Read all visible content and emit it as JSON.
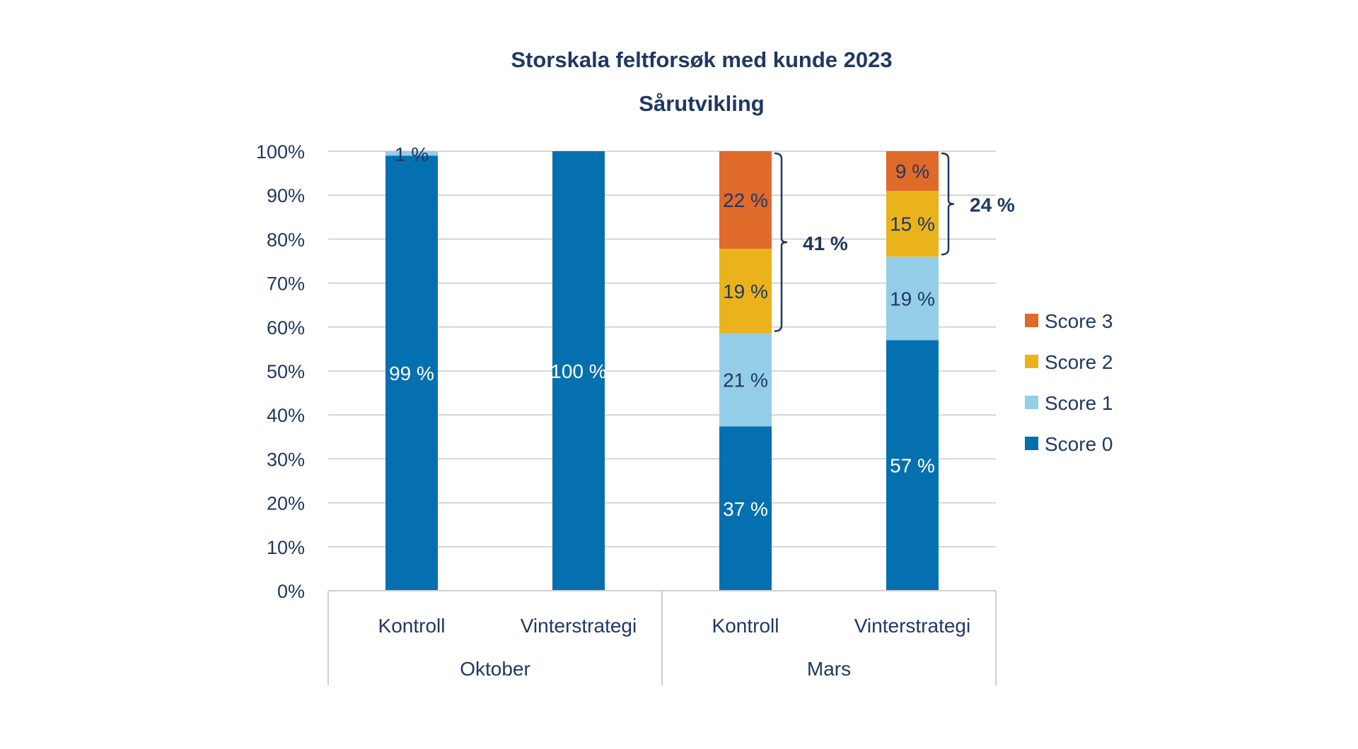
{
  "chart_data": {
    "type": "bar",
    "stacked": true,
    "percent_stacked": true,
    "title": "Storskala feltforsøk med kunde 2023",
    "subtitle": "Sårutvikling",
    "xlabel": "",
    "ylabel": "",
    "ylim": [
      0,
      100
    ],
    "yticks": [
      0,
      10,
      20,
      30,
      40,
      50,
      60,
      70,
      80,
      90,
      100
    ],
    "ytick_format": "{v}%",
    "grid": true,
    "legend_position": "right",
    "categories": [
      "Kontroll",
      "Vinterstrategi",
      "Kontroll",
      "Vinterstrategi"
    ],
    "groups": [
      {
        "label": "Oktober",
        "span": [
          0,
          1
        ]
      },
      {
        "label": "Mars",
        "span": [
          2,
          3
        ]
      }
    ],
    "series": [
      {
        "name": "Score 0",
        "color": "#0570AF",
        "label_color": "#FFFFFF",
        "values": [
          99,
          100,
          37,
          57
        ],
        "labels": [
          "99 %",
          "100 %",
          "37 %",
          "57 %"
        ]
      },
      {
        "name": "Score 1",
        "color": "#94CDE8",
        "label_color": "#1F3864",
        "values": [
          1,
          0,
          21,
          19
        ],
        "labels": [
          "1 %",
          "",
          "21 %",
          "19 %"
        ]
      },
      {
        "name": "Score 2",
        "color": "#EAB31C",
        "label_color": "#1F3864",
        "values": [
          0,
          0,
          19,
          15
        ],
        "labels": [
          "",
          "",
          "19 %",
          "15 %"
        ]
      },
      {
        "name": "Score 3",
        "color": "#E06A2A",
        "label_color": "#1F3864",
        "values": [
          0,
          0,
          22,
          9
        ],
        "labels": [
          "",
          "",
          "22 %",
          "9 %"
        ]
      }
    ],
    "legend_order": [
      "Score 3",
      "Score 2",
      "Score 1",
      "Score 0"
    ],
    "annotations": [
      {
        "type": "bracket",
        "category_index": 2,
        "series_from": "Score 2",
        "series_to": "Score 3",
        "label": "41 %"
      },
      {
        "type": "bracket",
        "category_index": 3,
        "series_from": "Score 2",
        "series_to": "Score 3",
        "label": "24 %"
      }
    ],
    "colors": {
      "text": "#1F3864",
      "grid": "#C9C9C9",
      "axis": "#D0D0D0"
    }
  }
}
